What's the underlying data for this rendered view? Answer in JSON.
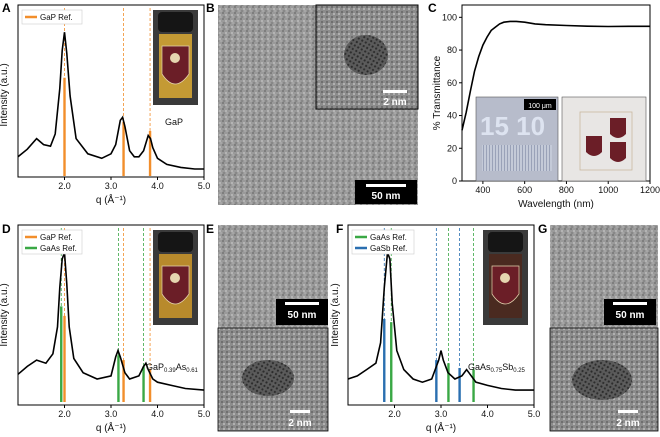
{
  "panels": {
    "A": {
      "letter": "A",
      "ylabel": "Intensity (a.u.)",
      "xlabel": "q (Å⁻¹)",
      "legend": [
        "GaP Ref."
      ],
      "annotation": "GaP"
    },
    "B": {
      "letter": "B",
      "scalebar_main": "50 nm",
      "scalebar_inset": "2 nm"
    },
    "C": {
      "letter": "C",
      "ylabel": "% Transmittance",
      "xlabel": "Wavelength (nm)",
      "inset_scalebar": "100 μm",
      "inset_text": "15 10"
    },
    "D": {
      "letter": "D",
      "ylabel": "Intensity (a.u.)",
      "xlabel": "q (Å⁻¹)",
      "legend": [
        "GaP Ref.",
        "GaAs Ref."
      ],
      "annotation_main": "GaP",
      "annotation_sub1": "0.39",
      "annotation_mid": "As",
      "annotation_sub2": "0.61"
    },
    "E": {
      "letter": "E",
      "scalebar_top": "50 nm",
      "scalebar_bottom": "2 nm"
    },
    "F": {
      "letter": "F",
      "ylabel": "Intensity (a.u.)",
      "xlabel": "q (Å⁻¹)",
      "legend": [
        "GaAs Ref.",
        "GaSb Ref."
      ],
      "annotation_main": "GaAs",
      "annotation_sub1": "0.75",
      "annotation_mid": "Sb",
      "annotation_sub2": "0.25"
    },
    "G": {
      "letter": "G",
      "scalebar_top": "50 nm",
      "scalebar_bottom": "2 nm"
    }
  },
  "colors": {
    "orange": "#f28e2b",
    "green": "#3aa845",
    "blue": "#2a6fb0",
    "curve": "#000000"
  },
  "chart_data": [
    {
      "panel": "A",
      "type": "line",
      "xlim": [
        1.0,
        5.0
      ],
      "xticks": [
        "2.0",
        "3.0",
        "4.0",
        "5.0"
      ],
      "series": [
        {
          "x": [
            1.0,
            1.2,
            1.4,
            1.55,
            1.7,
            1.8,
            1.9,
            1.95,
            2.0,
            2.05,
            2.12,
            2.25,
            2.5,
            2.8,
            3.0,
            3.1,
            3.2,
            3.25,
            3.3,
            3.4,
            3.5,
            3.6,
            3.7,
            3.8,
            3.85,
            3.9,
            4.0,
            4.2,
            4.5,
            4.8,
            5.0
          ],
          "y": [
            0.1,
            0.15,
            0.22,
            0.18,
            0.17,
            0.25,
            0.55,
            0.8,
            0.92,
            0.78,
            0.5,
            0.22,
            0.12,
            0.09,
            0.12,
            0.18,
            0.34,
            0.36,
            0.3,
            0.14,
            0.1,
            0.1,
            0.14,
            0.24,
            0.22,
            0.16,
            0.09,
            0.05,
            0.03,
            0.02,
            0.02
          ]
        }
      ],
      "refs": [
        {
          "group": 0,
          "positions": [
            2.0,
            3.27,
            3.84
          ],
          "heights": [
            0.62,
            0.33,
            0.27
          ]
        }
      ]
    },
    {
      "panel": "C",
      "type": "line",
      "xlim": [
        300,
        1200
      ],
      "ylim": [
        0,
        100
      ],
      "xticks": [
        "400",
        "600",
        "800",
        "1000",
        "1200"
      ],
      "yticks": [
        "0",
        "20",
        "40",
        "60",
        "80",
        "100"
      ],
      "series": [
        {
          "x": [
            300,
            320,
            340,
            360,
            380,
            400,
            420,
            440,
            460,
            480,
            500,
            530,
            560,
            600,
            650,
            700,
            800,
            900,
            1000,
            1100,
            1200
          ],
          "y": [
            31,
            42,
            55,
            67,
            76,
            83,
            88,
            92,
            94,
            96,
            97,
            97.5,
            97.5,
            97,
            96,
            95.5,
            95,
            94.6,
            94.4,
            94.5,
            94.5
          ]
        }
      ]
    },
    {
      "panel": "D",
      "type": "line",
      "xlim": [
        1.0,
        5.0
      ],
      "xticks": [
        "2.0",
        "3.0",
        "4.0",
        "5.0"
      ],
      "series": [
        {
          "x": [
            1.0,
            1.2,
            1.4,
            1.6,
            1.75,
            1.85,
            1.9,
            1.95,
            2.0,
            2.05,
            2.1,
            2.2,
            2.4,
            2.7,
            3.0,
            3.1,
            3.15,
            3.2,
            3.3,
            3.4,
            3.6,
            3.7,
            3.75,
            3.8,
            3.9,
            4.0,
            4.3,
            4.6,
            5.0
          ],
          "y": [
            0.15,
            0.2,
            0.24,
            0.22,
            0.28,
            0.45,
            0.7,
            0.88,
            0.92,
            0.72,
            0.45,
            0.25,
            0.16,
            0.12,
            0.14,
            0.26,
            0.3,
            0.26,
            0.16,
            0.12,
            0.14,
            0.2,
            0.22,
            0.18,
            0.12,
            0.1,
            0.08,
            0.06,
            0.05
          ]
        }
      ],
      "refs": [
        {
          "group": 0,
          "positions": [
            2.0,
            3.27,
            3.84
          ],
          "heights": [
            0.52,
            0.24,
            0.18
          ]
        },
        {
          "group": 1,
          "positions": [
            1.93,
            3.16,
            3.7
          ],
          "heights": [
            0.58,
            0.27,
            0.2
          ]
        }
      ]
    },
    {
      "panel": "F",
      "type": "line",
      "xlim": [
        1.0,
        5.0
      ],
      "xticks": [
        "2.0",
        "3.0",
        "4.0",
        "5.0"
      ],
      "series": [
        {
          "x": [
            1.0,
            1.2,
            1.4,
            1.6,
            1.7,
            1.78,
            1.85,
            1.9,
            1.95,
            2.05,
            2.2,
            2.4,
            2.6,
            2.8,
            2.95,
            3.0,
            3.05,
            3.15,
            3.3,
            3.45,
            3.55,
            3.6,
            3.75,
            4.0,
            4.3,
            4.6,
            5.0
          ],
          "y": [
            0.12,
            0.14,
            0.18,
            0.22,
            0.35,
            0.7,
            0.92,
            0.88,
            0.6,
            0.3,
            0.18,
            0.12,
            0.1,
            0.12,
            0.24,
            0.3,
            0.24,
            0.16,
            0.12,
            0.14,
            0.18,
            0.16,
            0.1,
            0.08,
            0.06,
            0.05,
            0.05
          ]
        }
      ],
      "refs": [
        {
          "group": 0,
          "positions": [
            1.93,
            3.16,
            3.7
          ],
          "heights": [
            0.48,
            0.22,
            0.18
          ]
        },
        {
          "group": 1,
          "positions": [
            1.78,
            2.9,
            3.4
          ],
          "heights": [
            0.5,
            0.24,
            0.19
          ]
        }
      ]
    }
  ]
}
